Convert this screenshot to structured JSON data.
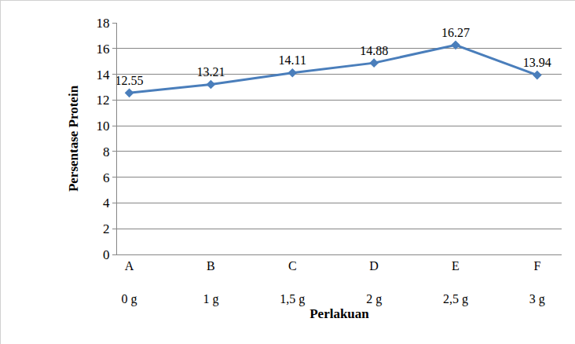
{
  "chart_data": {
    "type": "line",
    "x_label": "Perlakuan",
    "y_label": "Persentase Protein",
    "categories": [
      "A\n0 g",
      "B\n1 g",
      "C\n1,5 g",
      "D\n2 g",
      "E\n2,5 g",
      "F\n3 g"
    ],
    "values": [
      12.55,
      13.21,
      14.11,
      14.88,
      16.27,
      13.94
    ],
    "color": "#4a7ebb",
    "marker": "diamond",
    "ylim": [
      0,
      18
    ],
    "yticks": [
      0,
      2,
      4,
      6,
      8,
      10,
      12,
      14,
      16,
      18
    ],
    "grid": true,
    "data_labels": true
  }
}
